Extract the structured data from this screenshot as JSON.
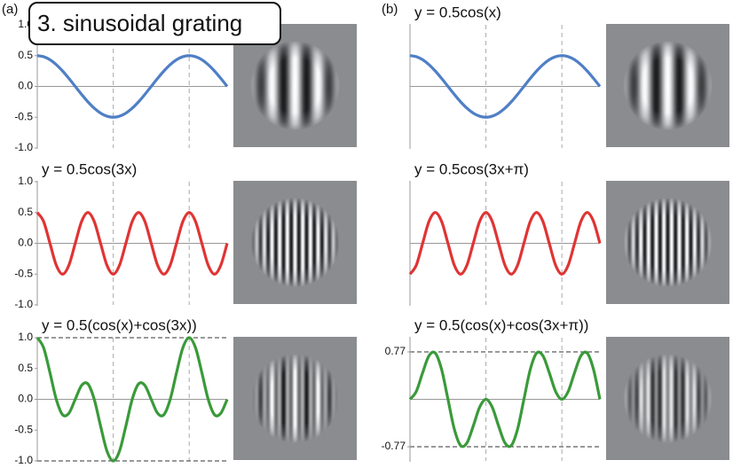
{
  "heading": "3. sinusoidal grating",
  "panels": [
    "(a)",
    "(b)"
  ],
  "chart_data": [
    {
      "type": "line",
      "color": "#4f7fc6",
      "x": [
        0,
        0.262,
        0.524,
        0.785,
        1.047,
        1.309,
        1.571,
        1.833,
        2.094,
        2.356,
        2.618,
        2.88,
        3.142,
        3.403,
        3.665,
        3.927,
        4.189,
        4.451,
        4.712,
        4.974,
        5.236,
        5.498,
        5.76,
        6.021,
        6.283,
        6.545,
        6.807,
        7.069,
        7.33,
        7.592,
        7.854
      ],
      "values": [
        0.5,
        0.483,
        0.433,
        0.354,
        0.25,
        0.129,
        0,
        -0.129,
        -0.25,
        -0.354,
        -0.433,
        -0.483,
        -0.5,
        -0.483,
        -0.433,
        -0.354,
        -0.25,
        -0.129,
        0,
        0.129,
        0.25,
        0.354,
        0.433,
        0.483,
        0.5,
        0.483,
        0.433,
        0.354,
        0.25,
        0.129,
        0
      ],
      "xlim": [
        0,
        7.854
      ],
      "ylim": [
        -1,
        1
      ],
      "yticks": [
        {
          "value": 1,
          "label": "1.0"
        },
        0.5,
        {
          "value": 0,
          "label": "0.0"
        },
        -0.5,
        {
          "value": -1,
          "label": "-1.0"
        }
      ],
      "vlines": [
        3.142,
        6.283
      ]
    },
    {
      "type": "line",
      "title": "y = 0.5cos(3x)",
      "color": "#e03434",
      "x": [
        0,
        0.262,
        0.524,
        0.785,
        1.047,
        1.309,
        1.571,
        1.833,
        2.094,
        2.356,
        2.618,
        2.88,
        3.142,
        3.403,
        3.665,
        3.927,
        4.189,
        4.451,
        4.712,
        4.974,
        5.236,
        5.498,
        5.76,
        6.021,
        6.283,
        6.545,
        6.807,
        7.069,
        7.33,
        7.592,
        7.854
      ],
      "values": [
        0.5,
        0.354,
        0,
        -0.354,
        -0.5,
        -0.354,
        0,
        0.354,
        0.5,
        0.354,
        0,
        -0.354,
        -0.5,
        -0.354,
        0,
        0.354,
        0.5,
        0.354,
        0,
        -0.354,
        -0.5,
        -0.354,
        0,
        0.354,
        0.5,
        0.354,
        0,
        -0.354,
        -0.5,
        -0.354,
        0
      ],
      "xlim": [
        0,
        7.854
      ],
      "ylim": [
        -1,
        1
      ],
      "yticks": [
        {
          "value": 1,
          "label": "1.0"
        },
        0.5,
        {
          "value": 0,
          "label": "0.0"
        },
        -0.5,
        {
          "value": -1,
          "label": "-1.0"
        }
      ],
      "vlines": [
        3.142,
        6.283
      ]
    },
    {
      "type": "line",
      "title": "y = 0.5(cos(x)+cos(3x))",
      "color": "#3a9a3a",
      "x": [
        0,
        0.262,
        0.524,
        0.785,
        1.047,
        1.309,
        1.571,
        1.833,
        2.094,
        2.356,
        2.618,
        2.88,
        3.142,
        3.403,
        3.665,
        3.927,
        4.189,
        4.451,
        4.712,
        4.974,
        5.236,
        5.498,
        5.76,
        6.021,
        6.283,
        6.545,
        6.807,
        7.069,
        7.33,
        7.592,
        7.854
      ],
      "values": [
        1,
        0.837,
        0.433,
        0,
        -0.25,
        -0.225,
        0,
        0.225,
        0.25,
        0,
        -0.433,
        -0.837,
        -1,
        -0.837,
        -0.433,
        0,
        0.25,
        0.225,
        0,
        -0.225,
        -0.25,
        0,
        0.433,
        0.837,
        1,
        0.837,
        0.433,
        0,
        -0.25,
        -0.225,
        0
      ],
      "xlim": [
        0,
        7.854
      ],
      "ylim": [
        -1,
        1
      ],
      "yticks": [
        {
          "value": 1,
          "label": "1.0"
        },
        0.5,
        {
          "value": 0,
          "label": "0.0"
        },
        -0.5,
        {
          "value": -1,
          "label": "-1.0"
        }
      ],
      "vlines": [
        3.142,
        6.283
      ],
      "hlines": [
        1,
        -1
      ]
    },
    {
      "type": "line",
      "title": "y = 0.5cos(x)",
      "color": "#4f7fc6",
      "x": [
        0,
        0.262,
        0.524,
        0.785,
        1.047,
        1.309,
        1.571,
        1.833,
        2.094,
        2.356,
        2.618,
        2.88,
        3.142,
        3.403,
        3.665,
        3.927,
        4.189,
        4.451,
        4.712,
        4.974,
        5.236,
        5.498,
        5.76,
        6.021,
        6.283,
        6.545,
        6.807,
        7.069,
        7.33,
        7.592,
        7.854
      ],
      "values": [
        0.5,
        0.483,
        0.433,
        0.354,
        0.25,
        0.129,
        0,
        -0.129,
        -0.25,
        -0.354,
        -0.433,
        -0.483,
        -0.5,
        -0.483,
        -0.433,
        -0.354,
        -0.25,
        -0.129,
        0,
        0.129,
        0.25,
        0.354,
        0.433,
        0.483,
        0.5,
        0.483,
        0.433,
        0.354,
        0.25,
        0.129,
        0
      ],
      "xlim": [
        0,
        7.854
      ],
      "ylim": [
        -1,
        1
      ],
      "vlines": [
        3.142,
        6.283
      ]
    },
    {
      "type": "line",
      "title": "y = 0.5cos(3x+π)",
      "color": "#e03434",
      "x": [
        0,
        0.262,
        0.524,
        0.785,
        1.047,
        1.309,
        1.571,
        1.833,
        2.094,
        2.356,
        2.618,
        2.88,
        3.142,
        3.403,
        3.665,
        3.927,
        4.189,
        4.451,
        4.712,
        4.974,
        5.236,
        5.498,
        5.76,
        6.021,
        6.283,
        6.545,
        6.807,
        7.069,
        7.33,
        7.592,
        7.854
      ],
      "values": [
        -0.5,
        -0.354,
        0,
        0.354,
        0.5,
        0.354,
        0,
        -0.354,
        -0.5,
        -0.354,
        0,
        0.354,
        0.5,
        0.354,
        0,
        -0.354,
        -0.5,
        -0.354,
        0,
        0.354,
        0.5,
        0.354,
        0,
        -0.354,
        -0.5,
        -0.354,
        0,
        0.354,
        0.5,
        0.354,
        0
      ],
      "xlim": [
        0,
        7.854
      ],
      "ylim": [
        -1,
        1
      ],
      "vlines": [
        3.142,
        6.283
      ]
    },
    {
      "type": "line",
      "title": "y = 0.5(cos(x)+cos(3x+π))",
      "color": "#3a9a3a",
      "x": [
        0,
        0.262,
        0.524,
        0.785,
        1.047,
        1.309,
        1.571,
        1.833,
        2.094,
        2.356,
        2.618,
        2.88,
        3.142,
        3.403,
        3.665,
        3.927,
        4.189,
        4.451,
        4.712,
        4.974,
        5.236,
        5.498,
        5.76,
        6.021,
        6.283,
        6.545,
        6.807,
        7.069,
        7.33,
        7.592,
        7.854
      ],
      "values": [
        0,
        0.129,
        0.433,
        0.707,
        0.75,
        0.483,
        0,
        -0.483,
        -0.75,
        -0.707,
        -0.433,
        -0.129,
        0,
        -0.129,
        -0.433,
        -0.707,
        -0.75,
        -0.483,
        0,
        0.483,
        0.75,
        0.707,
        0.433,
        0.129,
        0,
        0.129,
        0.433,
        0.707,
        0.75,
        0.483,
        0
      ],
      "xlim": [
        0,
        7.854
      ],
      "ylim": [
        -1,
        1
      ],
      "yticks": [
        0.77,
        -0.77
      ],
      "vlines": [
        3.142,
        6.283
      ],
      "hlines": [
        0.77,
        -0.77
      ]
    }
  ]
}
